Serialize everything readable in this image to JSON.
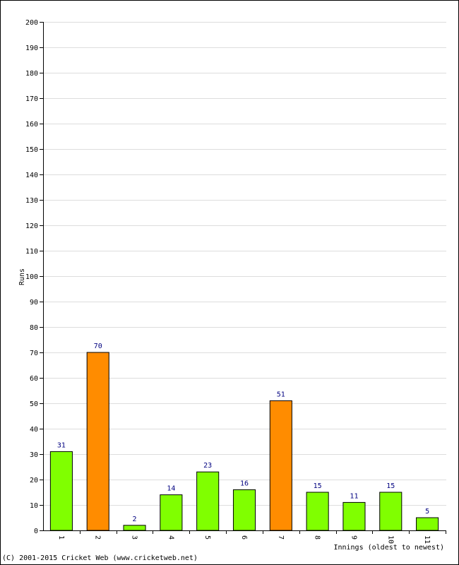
{
  "chart_data": {
    "type": "bar",
    "title": "",
    "xlabel": "Innings (oldest to newest)",
    "ylabel": "Runs",
    "ylim": [
      0,
      200
    ],
    "ytick_step": 10,
    "grid": true,
    "categories": [
      "1",
      "2",
      "3",
      "4",
      "5",
      "6",
      "7",
      "8",
      "9",
      "10",
      "11"
    ],
    "values": [
      31,
      70,
      2,
      14,
      23,
      16,
      51,
      15,
      11,
      15,
      5
    ],
    "bar_highlight": [
      false,
      true,
      false,
      false,
      false,
      false,
      true,
      false,
      false,
      false,
      false
    ],
    "colors": {
      "bar_default": "#80ff00",
      "bar_highlight": "#ff8c00",
      "value_label": "#000080",
      "grid": "#dddddd",
      "axis": "#000000"
    }
  },
  "footer": {
    "copyright": "(C) 2001-2015 Cricket Web (www.cricketweb.net)"
  }
}
